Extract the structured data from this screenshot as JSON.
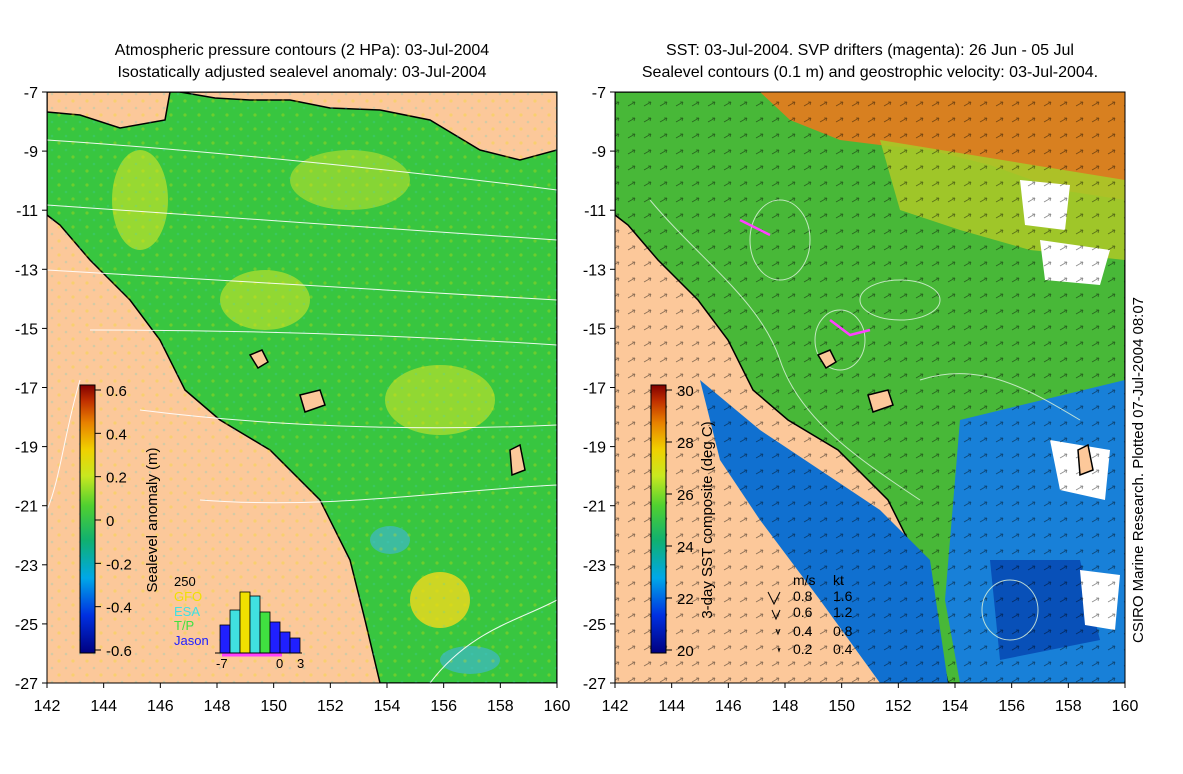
{
  "left_panel": {
    "title_line1": "Atmospheric pressure contours (2 HPa): 03-Jul-2004",
    "title_line2": "Isostatically adjusted sealevel anomaly: 03-Jul-2004",
    "colorbar_label": "Sealevel anomaly (m)",
    "colorbar_ticks": [
      "0.6",
      "0.4",
      "0.2",
      "0",
      "-0.2",
      "-0.4",
      "-0.6"
    ],
    "histogram": {
      "y_tick": "250",
      "legend": [
        {
          "label": "GFO",
          "color": "#f0e000"
        },
        {
          "label": "ESA",
          "color": "#40e0e0"
        },
        {
          "label": "T/P",
          "color": "#40e040"
        },
        {
          "label": "Jason",
          "color": "#2020ff"
        }
      ],
      "x_ticks": [
        "-7",
        "0",
        "3"
      ]
    }
  },
  "right_panel": {
    "title_line1": "SST: 03-Jul-2004. SVP drifters (magenta): 26 Jun - 05 Jul",
    "title_line2": "Sealevel contours (0.1 m) and geostrophic velocity: 03-Jul-2004.",
    "colorbar_label": "3-day SST composite (deg C)",
    "colorbar_ticks": [
      "30",
      "28",
      "26",
      "24",
      "22",
      "20"
    ],
    "velocity_legend": {
      "header_ms": "m/s",
      "header_kt": "kt",
      "rows": [
        {
          "ms": "0.8",
          "kt": "1.6"
        },
        {
          "ms": "0.6",
          "kt": "1.2"
        },
        {
          "ms": "0.4",
          "kt": "0.8"
        },
        {
          "ms": "0.2",
          "kt": "0.4"
        }
      ]
    },
    "credit": "CSIRO Marine Research. Plotted 07-Jul-2004 08:07"
  },
  "chart_data": [
    {
      "type": "heatmap",
      "title": "Atmospheric pressure contours (2 HPa): 03-Jul-2004 / Isostatically adjusted sealevel anomaly: 03-Jul-2004",
      "x_ticks": [
        "142",
        "144",
        "146",
        "148",
        "150",
        "152",
        "154",
        "156",
        "158",
        "160"
      ],
      "y_ticks": [
        "-7",
        "-9",
        "-11",
        "-13",
        "-15",
        "-17",
        "-19",
        "-21",
        "-23",
        "-25",
        "-27"
      ],
      "xlim": [
        142,
        160
      ],
      "ylim": [
        -27,
        -7
      ],
      "colorbar": {
        "label": "Sealevel anomaly (m)",
        "range": [
          -0.6,
          0.6
        ]
      },
      "colormap": [
        "#000080",
        "#0040ff",
        "#00c0ff",
        "#20c060",
        "#a0e020",
        "#f0e000",
        "#f09000",
        "#c03000",
        "#800000"
      ]
    },
    {
      "type": "heatmap",
      "title": "SST: 03-Jul-2004. SVP drifters (magenta): 26 Jun - 05 Jul / Sealevel contours (0.1 m) and geostrophic velocity: 03-Jul-2004.",
      "x_ticks": [
        "142",
        "144",
        "146",
        "148",
        "150",
        "152",
        "154",
        "156",
        "158",
        "160"
      ],
      "y_ticks": [
        "-7",
        "-9",
        "-11",
        "-13",
        "-15",
        "-17",
        "-19",
        "-21",
        "-23",
        "-25",
        "-27"
      ],
      "xlim": [
        142,
        160
      ],
      "ylim": [
        -27,
        -7
      ],
      "colorbar": {
        "label": "3-day SST composite (deg C)",
        "range": [
          20,
          30
        ]
      },
      "colormap": [
        "#000080",
        "#0040ff",
        "#00c0ff",
        "#20c060",
        "#a0e020",
        "#f0e000",
        "#f09000",
        "#c03000",
        "#800000"
      ]
    }
  ]
}
